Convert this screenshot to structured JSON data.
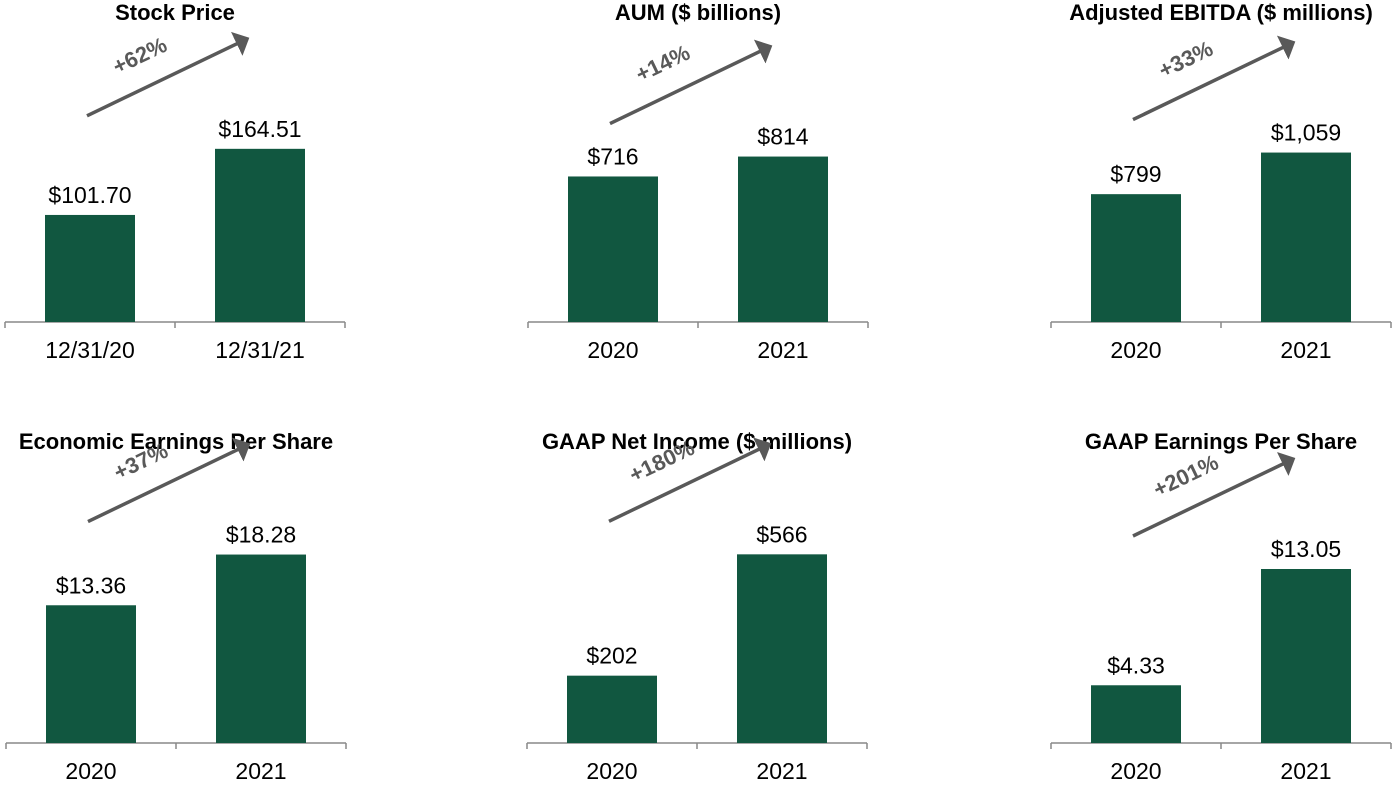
{
  "colors": {
    "bar": "#115740",
    "axis": "#888888",
    "arrow": "#595959",
    "text": "#000000"
  },
  "chart_data": [
    {
      "type": "bar",
      "title": "Stock Price",
      "categories": [
        "12/31/20",
        "12/31/21"
      ],
      "values": [
        101.7,
        164.51
      ],
      "value_labels": [
        "$101.70",
        "$164.51"
      ],
      "growth_label": "+62%",
      "ylim": [
        0,
        190
      ],
      "xlabel": "",
      "ylabel": ""
    },
    {
      "type": "bar",
      "title": "AUM ($ billions)",
      "categories": [
        "2020",
        "2021"
      ],
      "values": [
        716,
        814
      ],
      "value_labels": [
        "$716",
        "$814"
      ],
      "growth_label": "+14%",
      "ylim": [
        0,
        984
      ],
      "xlabel": "",
      "ylabel": ""
    },
    {
      "type": "bar",
      "title": "Adjusted EBITDA ($ millions)",
      "categories": [
        "2020",
        "2021"
      ],
      "values": [
        799,
        1059
      ],
      "value_labels": [
        "$799",
        "$1,059"
      ],
      "growth_label": "+33%",
      "ylim": [
        0,
        1250
      ],
      "xlabel": "",
      "ylabel": ""
    },
    {
      "type": "bar",
      "title": "Economic Earnings Per Share",
      "categories": [
        "2020",
        "2021"
      ],
      "values": [
        13.36,
        18.28
      ],
      "value_labels": [
        "$13.36",
        "$18.28"
      ],
      "growth_label": "+37%",
      "ylim": [
        0,
        19.4
      ],
      "xlabel": "",
      "ylabel": ""
    },
    {
      "type": "bar",
      "title": "GAAP Net Income ($ millions)",
      "categories": [
        "2020",
        "2021"
      ],
      "values": [
        202,
        566
      ],
      "value_labels": [
        "$202",
        "$566"
      ],
      "growth_label": "+180%",
      "ylim": [
        0,
        600
      ],
      "xlabel": "",
      "ylabel": ""
    },
    {
      "type": "bar",
      "title": "GAAP Earnings Per Share",
      "categories": [
        "2020",
        "2021"
      ],
      "values": [
        4.33,
        13.05
      ],
      "value_labels": [
        "$4.33",
        "$13.05"
      ],
      "growth_label": "+201%",
      "ylim": [
        0,
        15
      ],
      "xlabel": "",
      "ylabel": ""
    }
  ]
}
